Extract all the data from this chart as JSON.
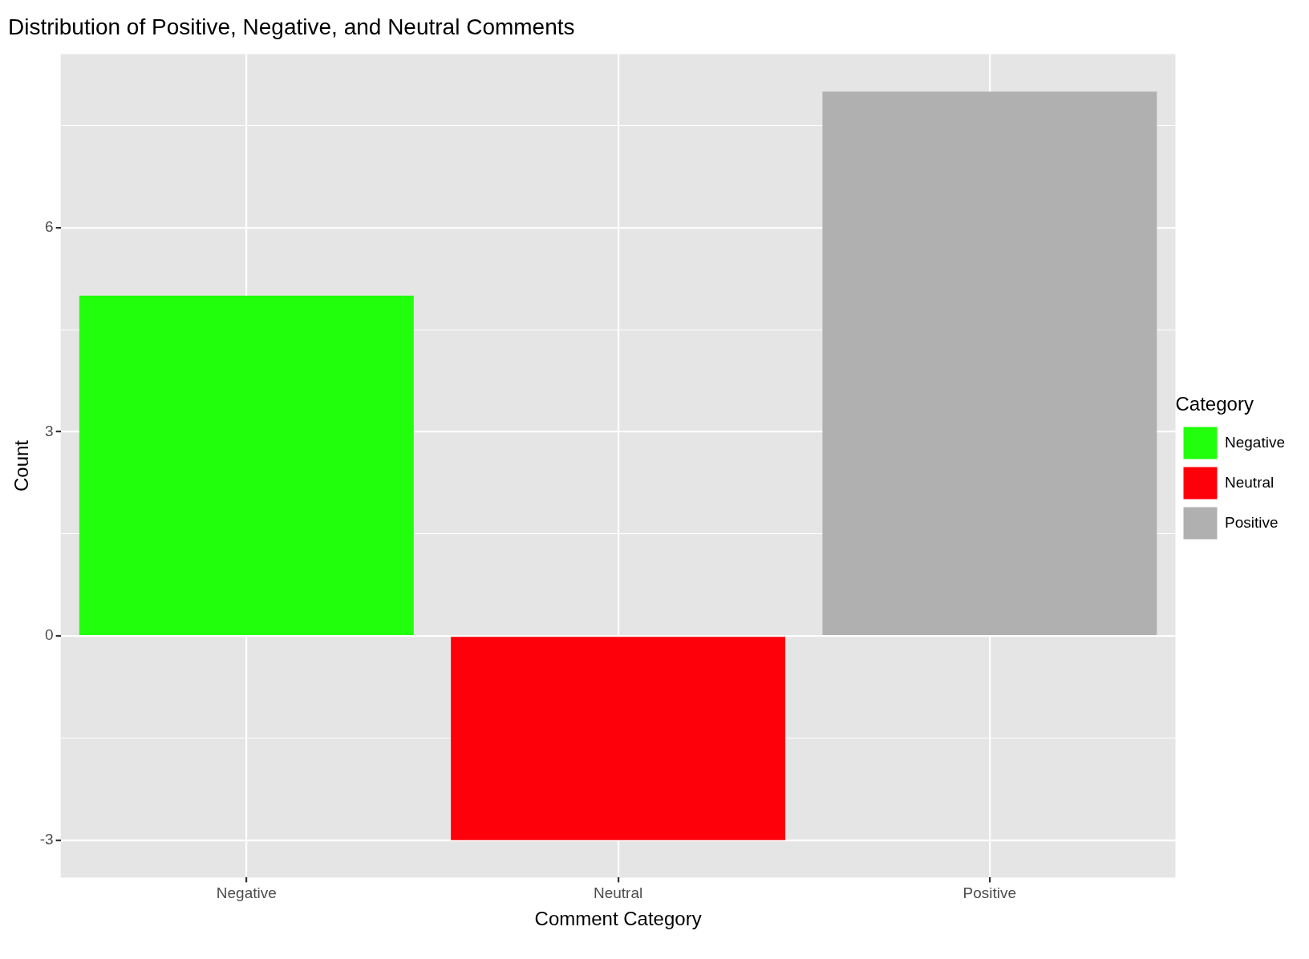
{
  "chart_data": {
    "type": "bar",
    "title": "Distribution of Positive, Negative, and Neutral Comments",
    "xlabel": "Comment Category",
    "ylabel": "Count",
    "legend_title": "Category",
    "categories": [
      "Negative",
      "Neutral",
      "Positive"
    ],
    "series": [
      {
        "name": "Negative",
        "color": "#22ff0c",
        "values": [
          5,
          null,
          null
        ]
      },
      {
        "name": "Neutral",
        "color": "#fe000a",
        "values": [
          null,
          -3,
          null
        ]
      },
      {
        "name": "Positive",
        "color": "#b0b0b0",
        "values": [
          null,
          null,
          8
        ]
      }
    ],
    "ylim": [
      -3.55,
      8.55
    ],
    "yticks": [
      {
        "value": -3,
        "label": "-3"
      },
      {
        "value": -1.5,
        "label": null
      },
      {
        "value": 0,
        "label": "0"
      },
      {
        "value": 1.5,
        "label": null
      },
      {
        "value": 3,
        "label": "3"
      },
      {
        "value": 4.5,
        "label": null
      },
      {
        "value": 6,
        "label": "6"
      },
      {
        "value": 7.5,
        "label": null
      }
    ],
    "grid": true,
    "legend": "right"
  }
}
